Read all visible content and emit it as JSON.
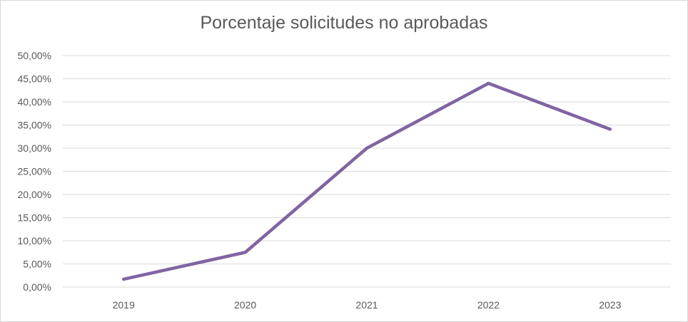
{
  "chart_data": {
    "type": "line",
    "title": "Porcentaje solicitudes no aprobadas",
    "categories": [
      "2019",
      "2020",
      "2021",
      "2022",
      "2023"
    ],
    "series": [
      {
        "values": [
          1.7,
          7.5,
          30.0,
          44.0,
          34.1
        ],
        "color": "#8064a2"
      }
    ],
    "y_ticks": [
      "0,00%",
      "5,00%",
      "10,00%",
      "15,00%",
      "20,00%",
      "25,00%",
      "30,00%",
      "35,00%",
      "40,00%",
      "45,00%",
      "50,00%"
    ],
    "ylim": [
      0,
      50
    ],
    "y_unit": "percent",
    "grid": "horizontal",
    "legend": "none"
  }
}
